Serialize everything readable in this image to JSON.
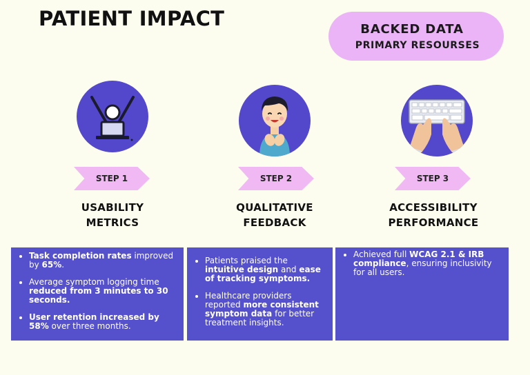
{
  "title": "PATIENT IMPACT",
  "badge": {
    "main": "BACKED DATA",
    "sub": "PRIMARY RESOURSES"
  },
  "colors": {
    "background": "#fcfcef",
    "accent_purple": "#5347cc",
    "box_purple": "#5550cc",
    "pink": "#f0b9f4"
  },
  "steps": [
    {
      "label": "STEP 1",
      "title_line1": "USABILITY",
      "title_line2": "METRICS",
      "icon": "celebrating-user-laptop-icon"
    },
    {
      "label": "STEP 2",
      "title_line1": "QUALITATIVE",
      "title_line2": "FEEDBACK",
      "icon": "happy-patient-icon"
    },
    {
      "label": "STEP 3",
      "title_line1": "ACCESSIBILITY",
      "title_line2": "PERFORMANCE",
      "icon": "hands-typing-keyboard-icon"
    }
  ],
  "boxes": [
    {
      "items": [
        {
          "t1": "Task completion rates",
          "t2": " improved by ",
          "t3": "65%",
          "t4": "."
        },
        {
          "t1": "Average symptom logging time ",
          "t2": "reduced from 3 minutes to 30 seconds."
        },
        {
          "t1": "User retention increased by 58%",
          "t2": " over three months."
        }
      ]
    },
    {
      "items": [
        {
          "t1": "Patients praised the ",
          "t2": "intuitive design",
          "t3": " and ",
          "t4": "ease of tracking symptoms."
        },
        {
          "t1": "Healthcare providers reported ",
          "t2": "more consistent symptom data",
          "t3": " for better treatment insights."
        }
      ]
    },
    {
      "items": [
        {
          "t1": "Achieved full ",
          "t2": "WCAG 2.1 & IRB compliance",
          "t3": ", ensuring inclusivity for all users."
        }
      ]
    }
  ]
}
